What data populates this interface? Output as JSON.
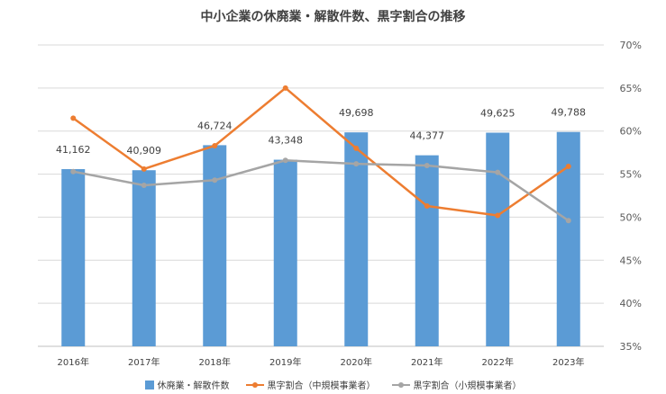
{
  "chart_data": {
    "type": "bar",
    "title": "中小企業の休廃業・解散件数、黒字割合の推移",
    "categories": [
      "2016年",
      "2017年",
      "2018年",
      "2019年",
      "2020年",
      "2021年",
      "2022年",
      "2023年"
    ],
    "bar_series": {
      "name": "休廃業・解散件数",
      "color": "#5B9BD5",
      "values": [
        41162,
        40909,
        46724,
        43348,
        49698,
        44377,
        49625,
        49788
      ],
      "labels": [
        "41,162",
        "40,909",
        "46,724",
        "43,348",
        "49,698",
        "44,377",
        "49,625",
        "49,788"
      ]
    },
    "line_series": [
      {
        "name": "黒字割合（中規模事業者）",
        "color": "#ED7D31",
        "values": [
          61.5,
          55.6,
          58.3,
          65.0,
          58.0,
          51.3,
          50.2,
          55.9
        ]
      },
      {
        "name": "黒字割合（小規模事業者）",
        "color": "#A5A5A5",
        "values": [
          55.3,
          53.7,
          54.3,
          56.6,
          56.2,
          56.0,
          55.2,
          49.6
        ]
      }
    ],
    "y_right": {
      "min": 35,
      "max": 70,
      "ticks": [
        "35%",
        "40%",
        "45%",
        "50%",
        "55%",
        "60%",
        "65%",
        "70%"
      ]
    },
    "y_left_range": [
      0,
      70000
    ],
    "grid": true,
    "legend_position": "bottom"
  }
}
